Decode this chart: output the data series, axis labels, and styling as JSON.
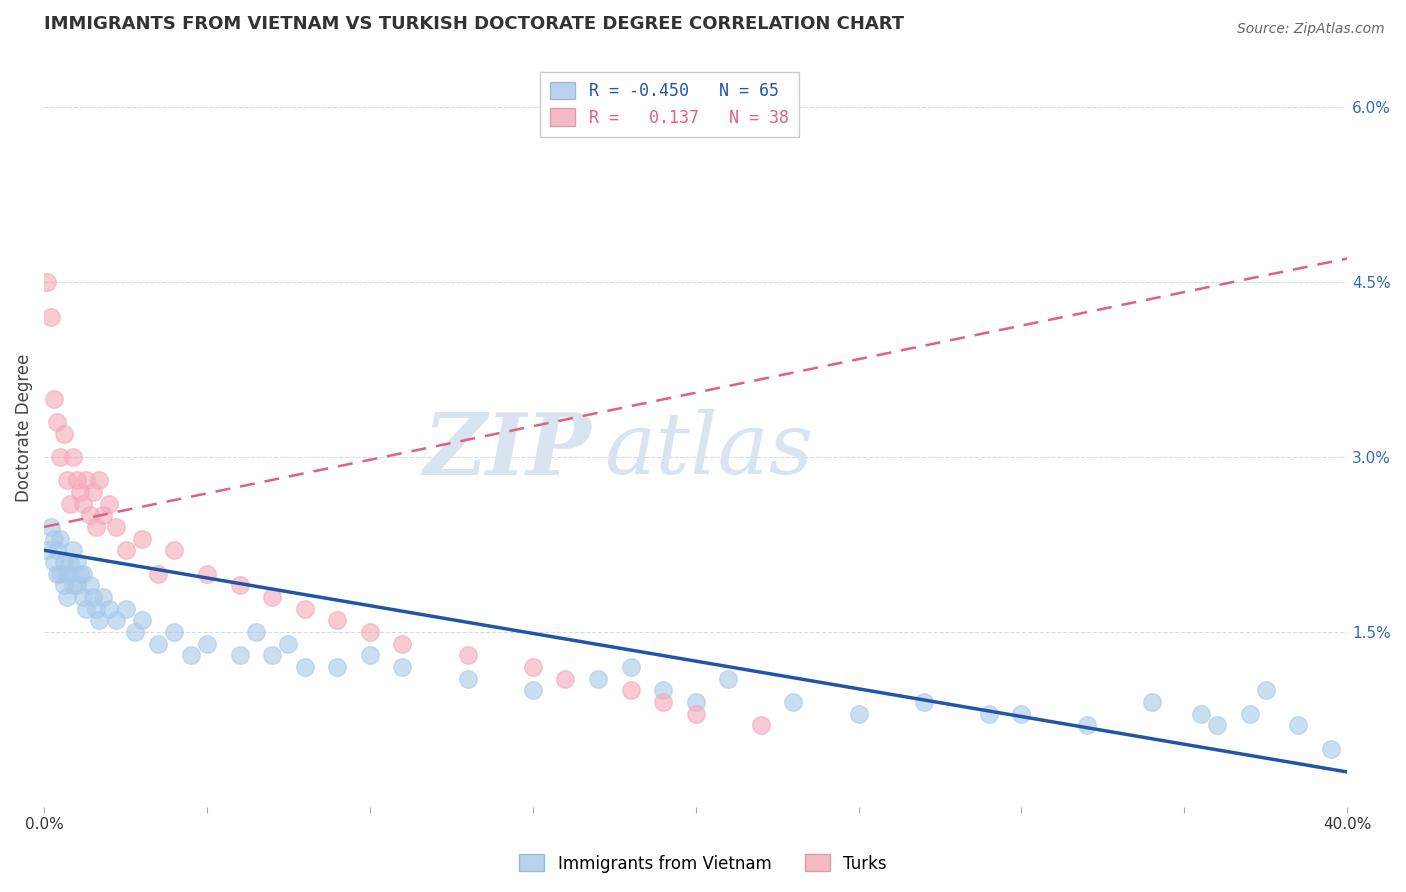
{
  "title": "IMMIGRANTS FROM VIETNAM VS TURKISH DOCTORATE DEGREE CORRELATION CHART",
  "source_text": "Source: ZipAtlas.com",
  "ylabel": "Doctorate Degree",
  "xlim": [
    0.0,
    0.4
  ],
  "ylim": [
    0.0,
    0.065
  ],
  "legend_label_blue": "Immigrants from Vietnam",
  "legend_label_pink": "Turks",
  "blue_color": "#a8c8e8",
  "pink_color": "#f4a8b8",
  "blue_line_color": "#2255aa",
  "pink_line_color": "#e06080",
  "watermark_color": "#d8e4f0",
  "background_color": "#ffffff",
  "grid_color": "#d0dce8",
  "blue_scatter_x": [
    0.001,
    0.002,
    0.003,
    0.003,
    0.004,
    0.004,
    0.005,
    0.005,
    0.006,
    0.006,
    0.007,
    0.007,
    0.008,
    0.008,
    0.009,
    0.009,
    0.01,
    0.01,
    0.011,
    0.012,
    0.012,
    0.013,
    0.014,
    0.015,
    0.016,
    0.017,
    0.018,
    0.02,
    0.022,
    0.025,
    0.028,
    0.03,
    0.035,
    0.04,
    0.045,
    0.05,
    0.06,
    0.065,
    0.07,
    0.075,
    0.08,
    0.09,
    0.1,
    0.11,
    0.13,
    0.15,
    0.17,
    0.18,
    0.19,
    0.2,
    0.21,
    0.23,
    0.25,
    0.27,
    0.29,
    0.3,
    0.32,
    0.34,
    0.355,
    0.36,
    0.37,
    0.375,
    0.385,
    0.395
  ],
  "blue_scatter_y": [
    0.022,
    0.024,
    0.023,
    0.021,
    0.022,
    0.02,
    0.02,
    0.023,
    0.021,
    0.019,
    0.02,
    0.018,
    0.021,
    0.02,
    0.019,
    0.022,
    0.019,
    0.021,
    0.02,
    0.018,
    0.02,
    0.017,
    0.019,
    0.018,
    0.017,
    0.016,
    0.018,
    0.017,
    0.016,
    0.017,
    0.015,
    0.016,
    0.014,
    0.015,
    0.013,
    0.014,
    0.013,
    0.015,
    0.013,
    0.014,
    0.012,
    0.012,
    0.013,
    0.012,
    0.011,
    0.01,
    0.011,
    0.012,
    0.01,
    0.009,
    0.011,
    0.009,
    0.008,
    0.009,
    0.008,
    0.008,
    0.007,
    0.009,
    0.008,
    0.007,
    0.008,
    0.01,
    0.007,
    0.005
  ],
  "pink_scatter_x": [
    0.001,
    0.002,
    0.003,
    0.004,
    0.005,
    0.006,
    0.007,
    0.008,
    0.009,
    0.01,
    0.011,
    0.012,
    0.013,
    0.014,
    0.015,
    0.016,
    0.017,
    0.018,
    0.02,
    0.022,
    0.025,
    0.03,
    0.035,
    0.04,
    0.05,
    0.06,
    0.07,
    0.08,
    0.09,
    0.1,
    0.11,
    0.13,
    0.15,
    0.16,
    0.18,
    0.19,
    0.2,
    0.22
  ],
  "pink_scatter_y": [
    0.045,
    0.042,
    0.035,
    0.033,
    0.03,
    0.032,
    0.028,
    0.026,
    0.03,
    0.028,
    0.027,
    0.026,
    0.028,
    0.025,
    0.027,
    0.024,
    0.028,
    0.025,
    0.026,
    0.024,
    0.022,
    0.023,
    0.02,
    0.022,
    0.02,
    0.019,
    0.018,
    0.017,
    0.016,
    0.015,
    0.014,
    0.013,
    0.012,
    0.011,
    0.01,
    0.009,
    0.008,
    0.007
  ],
  "blue_line_x0": 0.0,
  "blue_line_x1": 0.4,
  "blue_line_y0": 0.022,
  "blue_line_y1": 0.003,
  "pink_line_x0": 0.0,
  "pink_line_x1": 0.4,
  "pink_line_y0": 0.024,
  "pink_line_y1": 0.047
}
